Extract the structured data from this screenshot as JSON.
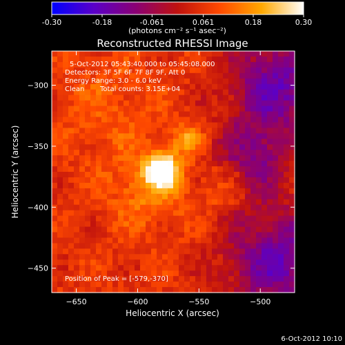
{
  "chart_data": {
    "type": "heatmap",
    "title": "Reconstructed RHESSI Image",
    "xlabel": "Heliocentric X (arcsec)",
    "ylabel": "Heliocentric Y (arcsec)",
    "xlim": [
      -670,
      -472
    ],
    "ylim": [
      -470,
      -272
    ],
    "xticks": [
      -650,
      -600,
      -550,
      -500
    ],
    "yticks": [
      -300,
      -350,
      -400,
      -450
    ],
    "colorbar": {
      "range": [
        -0.3,
        0.3
      ],
      "ticks": [
        -0.3,
        -0.18,
        -0.061,
        0.061,
        0.18,
        0.3
      ],
      "tick_labels": [
        "-0.30",
        "-0.18",
        "-0.061",
        "0.061",
        "0.18",
        "0.30"
      ],
      "unit_label": "(photons cm⁻² s⁻¹ asec⁻²)",
      "colors": [
        "#0000ff",
        "#5a00c8",
        "#8a0074",
        "#c0120e",
        "#ff4a00",
        "#ffa800",
        "#ffffff"
      ]
    },
    "annotations": [
      "5-Oct-2012 05:43:40.000 to 05:45:08.000",
      "Detectors: 3F 5F 6F 7F 8F 9F, Att 0",
      "Energy Range: 3.0 - 6.0 keV",
      "Clean",
      "Total counts: 3.15E+04"
    ],
    "peak": {
      "label": "Position of Peak = [-579,-370]",
      "x": -579,
      "y": -370
    },
    "sources": [
      {
        "x": -580,
        "y": -370,
        "sigma": 9,
        "amp": 0.3
      },
      {
        "x": -560,
        "y": -345,
        "sigma": 9,
        "amp": 0.12
      },
      {
        "x": -590,
        "y": -385,
        "sigma": 22,
        "amp": 0.1
      },
      {
        "x": -625,
        "y": -320,
        "sigma": 28,
        "amp": 0.05
      },
      {
        "x": -530,
        "y": -383,
        "sigma": 10,
        "amp": 0.05
      }
    ],
    "background_levels": [
      {
        "x": -485,
        "y": -300,
        "sigma": 28,
        "amp": -0.22
      },
      {
        "x": -485,
        "y": -445,
        "sigma": 30,
        "amp": -0.22
      },
      {
        "x": -505,
        "y": -360,
        "sigma": 22,
        "amp": -0.15
      }
    ],
    "timestamp": "6-Oct-2012 10:10"
  }
}
